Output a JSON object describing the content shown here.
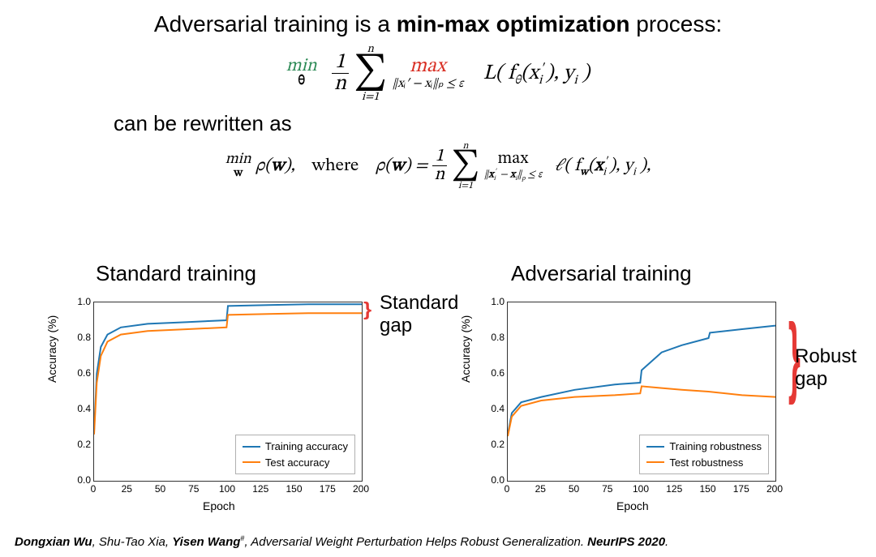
{
  "title_pre": "Adversarial training is a ",
  "title_bold": "min-max optimization",
  "title_post": " process:",
  "min_label": "min",
  "theta_label": "θ",
  "max_label": "max",
  "constraint1": "‖xᵢ′ − xᵢ‖ₚ ≤ ε",
  "sum_top": "n",
  "sum_bot": "i=1",
  "loss_expr": "L( f_θ(xᵢ′), yᵢ )",
  "rewritten": "can be rewritten as",
  "min_w": "min",
  "w_label": "w",
  "rho_expr": "ρ(w),    where    ρ(w) = ",
  "loss2_expr": "ℓ( f_w(xᵢ′), yᵢ ),",
  "chart_left_title": "Standard training",
  "chart_right_title": "Adversarial training",
  "ylabel": "Accuracy (%)",
  "xlabel": "Epoch",
  "yticks": [
    "0.0",
    "0.2",
    "0.4",
    "0.6",
    "0.8",
    "1.0"
  ],
  "xticks": [
    "0",
    "25",
    "50",
    "75",
    "100",
    "125",
    "150",
    "175",
    "200"
  ],
  "legend_left": {
    "s1": "Training accuracy",
    "s2": "Test accuracy"
  },
  "legend_right": {
    "s1": "Training robustness",
    "s2": "Test robustness"
  },
  "colors": {
    "train": "#1f77b4",
    "test": "#ff7f0e",
    "brace": "#e53935",
    "axis": "#333333",
    "bg": "#ffffff"
  },
  "chart_left": {
    "xlim": [
      0,
      200
    ],
    "ylim": [
      0,
      1
    ],
    "train": [
      [
        0,
        0.28
      ],
      [
        2,
        0.6
      ],
      [
        5,
        0.75
      ],
      [
        10,
        0.82
      ],
      [
        20,
        0.86
      ],
      [
        40,
        0.88
      ],
      [
        70,
        0.89
      ],
      [
        99,
        0.9
      ],
      [
        100,
        0.98
      ],
      [
        130,
        0.985
      ],
      [
        160,
        0.99
      ],
      [
        200,
        0.99
      ]
    ],
    "test": [
      [
        0,
        0.26
      ],
      [
        2,
        0.55
      ],
      [
        5,
        0.7
      ],
      [
        10,
        0.78
      ],
      [
        20,
        0.82
      ],
      [
        40,
        0.84
      ],
      [
        70,
        0.85
      ],
      [
        99,
        0.86
      ],
      [
        100,
        0.93
      ],
      [
        130,
        0.935
      ],
      [
        160,
        0.94
      ],
      [
        200,
        0.94
      ]
    ]
  },
  "chart_right": {
    "xlim": [
      0,
      200
    ],
    "ylim": [
      0,
      1
    ],
    "train": [
      [
        0,
        0.26
      ],
      [
        3,
        0.38
      ],
      [
        10,
        0.44
      ],
      [
        25,
        0.47
      ],
      [
        50,
        0.51
      ],
      [
        80,
        0.54
      ],
      [
        99,
        0.55
      ],
      [
        100,
        0.62
      ],
      [
        115,
        0.72
      ],
      [
        130,
        0.76
      ],
      [
        150,
        0.8
      ],
      [
        151,
        0.83
      ],
      [
        175,
        0.85
      ],
      [
        200,
        0.87
      ]
    ],
    "test": [
      [
        0,
        0.25
      ],
      [
        3,
        0.36
      ],
      [
        10,
        0.42
      ],
      [
        25,
        0.45
      ],
      [
        50,
        0.47
      ],
      [
        80,
        0.48
      ],
      [
        99,
        0.49
      ],
      [
        100,
        0.53
      ],
      [
        115,
        0.52
      ],
      [
        130,
        0.51
      ],
      [
        150,
        0.5
      ],
      [
        175,
        0.48
      ],
      [
        200,
        0.47
      ]
    ]
  },
  "gap_left_label": "Standard\ngap",
  "gap_right_label": "Robust gap",
  "citation_authors_pre": "Dongxian Wu",
  "citation_mid": ", Shu-Tao Xia, ",
  "citation_bold_author": "Yisen Wang",
  "citation_hash": "#",
  "citation_title": ", Adversarial Weight Perturbation Helps Robust Generalization. ",
  "citation_venue": "NeurIPS 2020",
  "citation_end": "."
}
